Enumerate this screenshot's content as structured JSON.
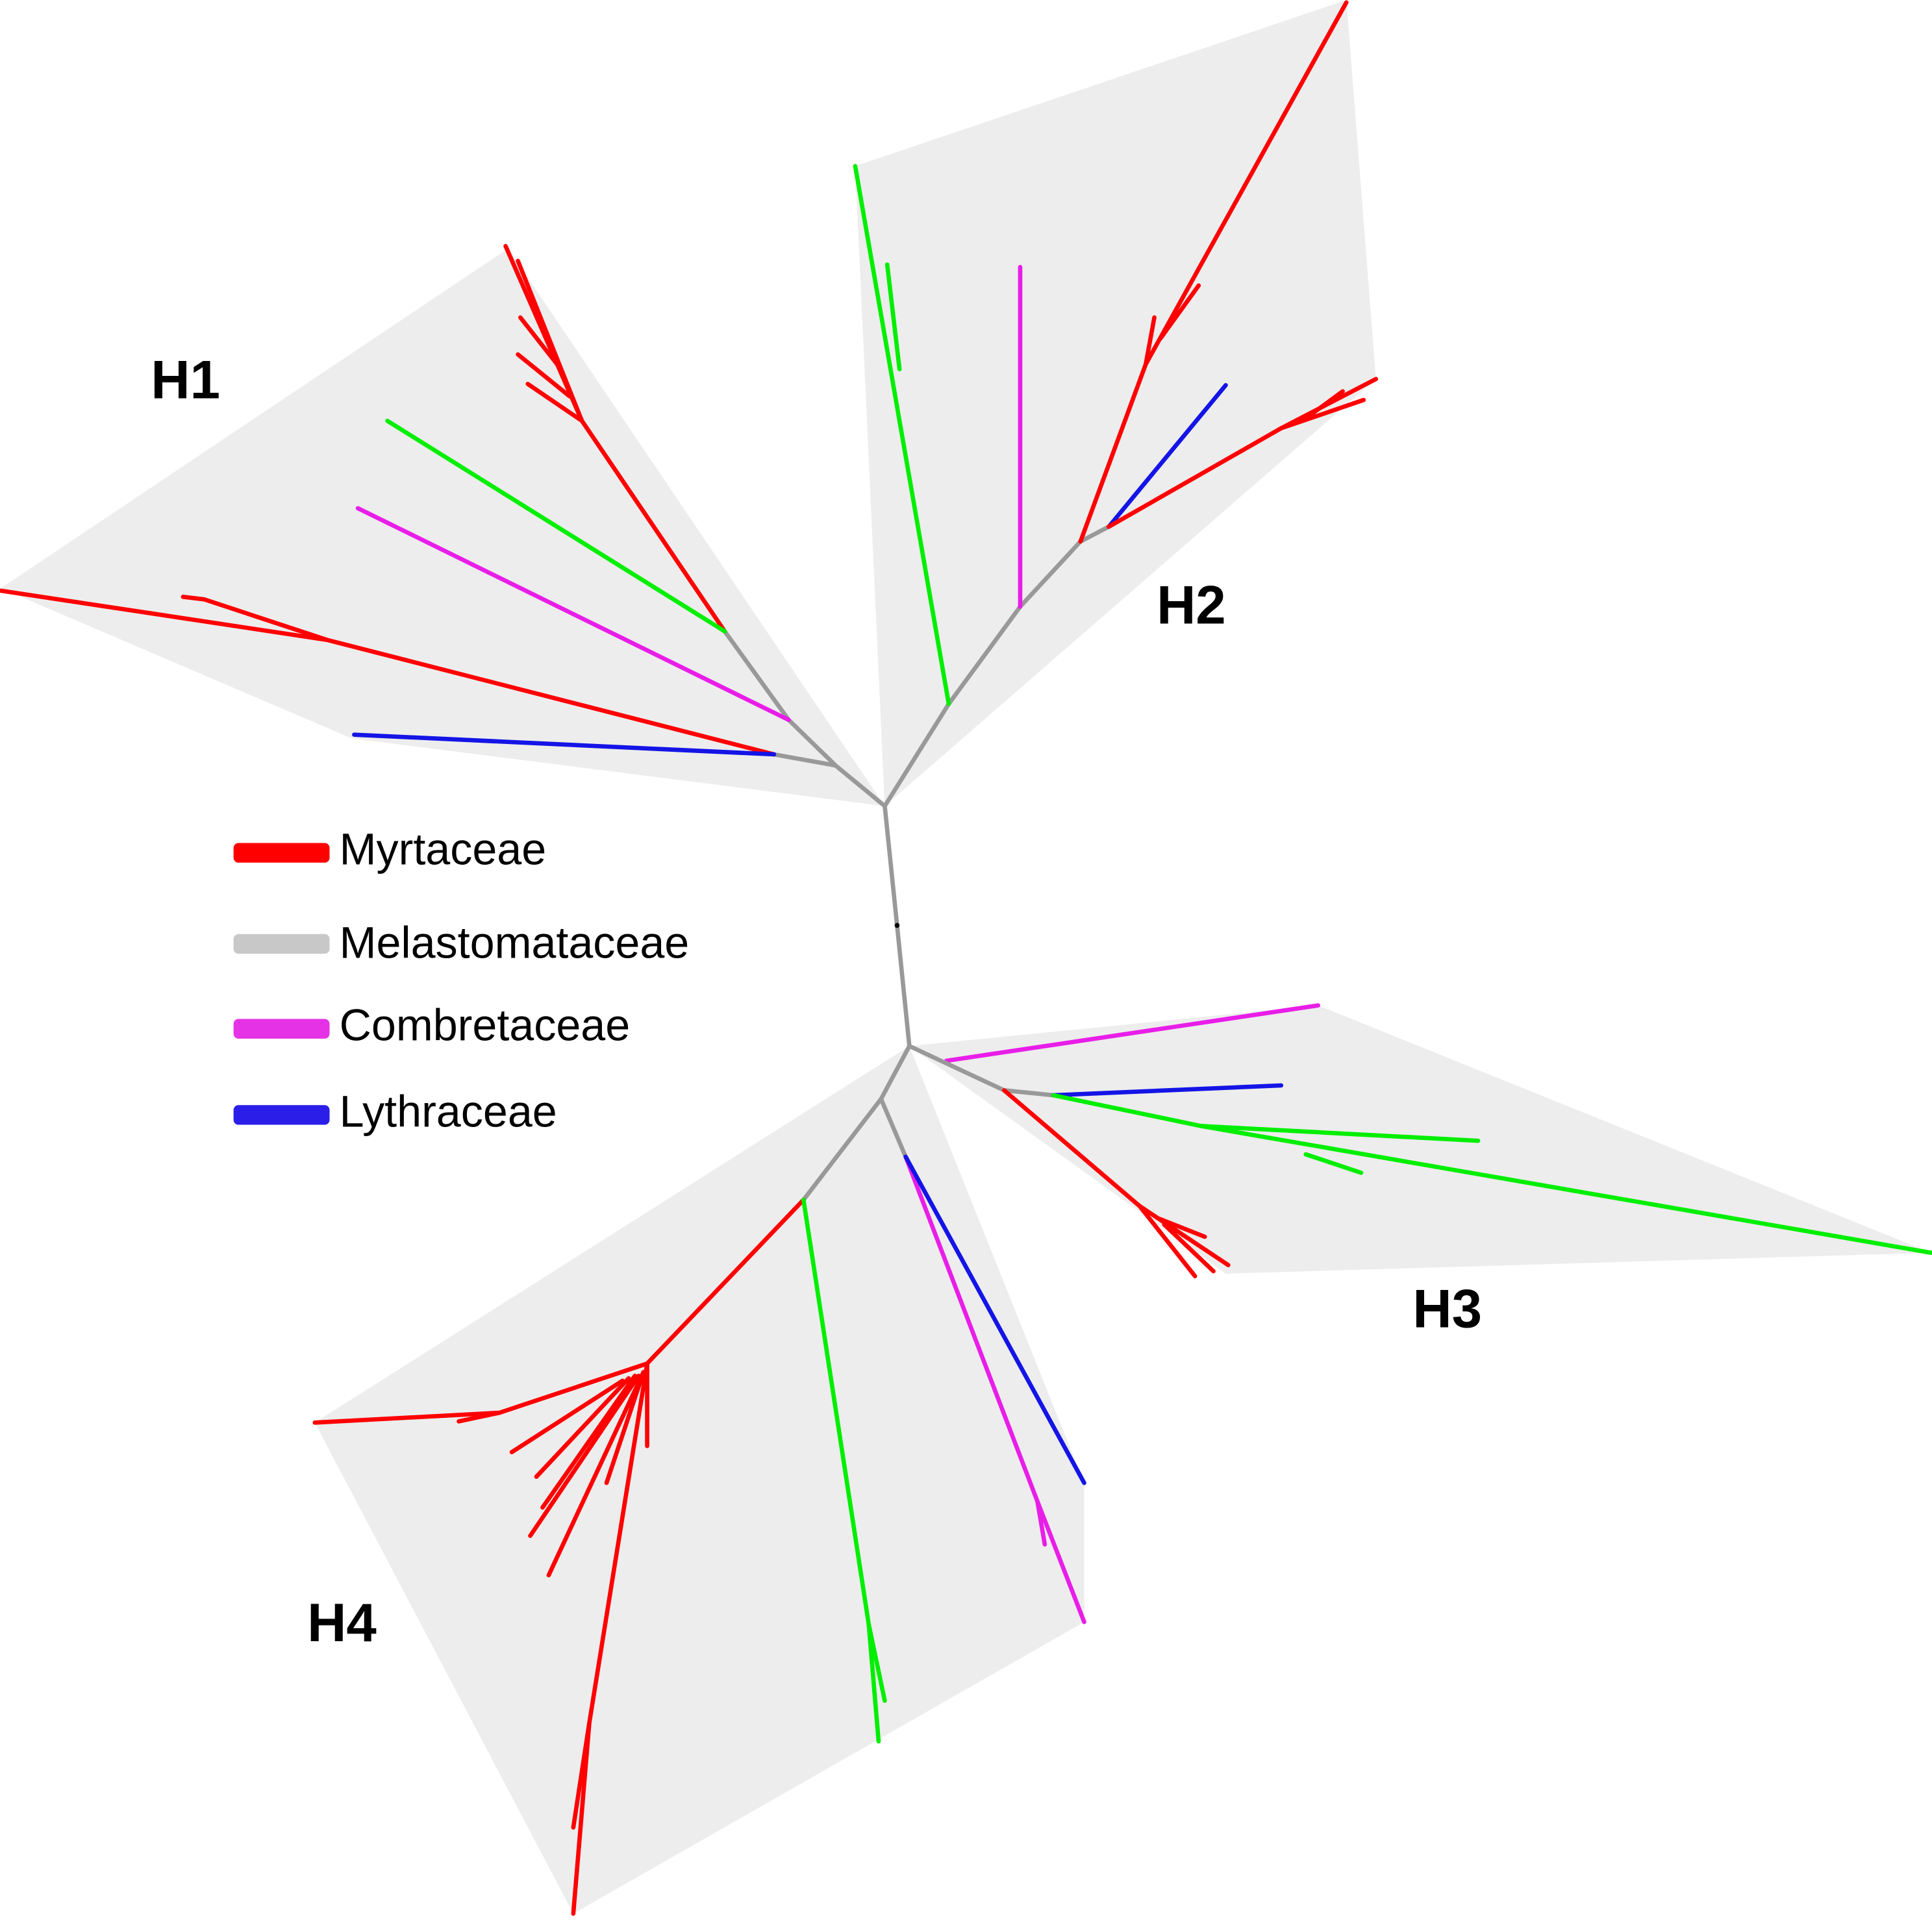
{
  "groups": [
    {
      "label": "H1"
    },
    {
      "label": "H2"
    },
    {
      "label": "H3"
    },
    {
      "label": "H4"
    }
  ],
  "legend": [
    {
      "label": "Myrtaceae"
    },
    {
      "label": "Melastomataceae"
    },
    {
      "label": "Combretaceae"
    },
    {
      "label": "Lythraceae"
    }
  ]
}
